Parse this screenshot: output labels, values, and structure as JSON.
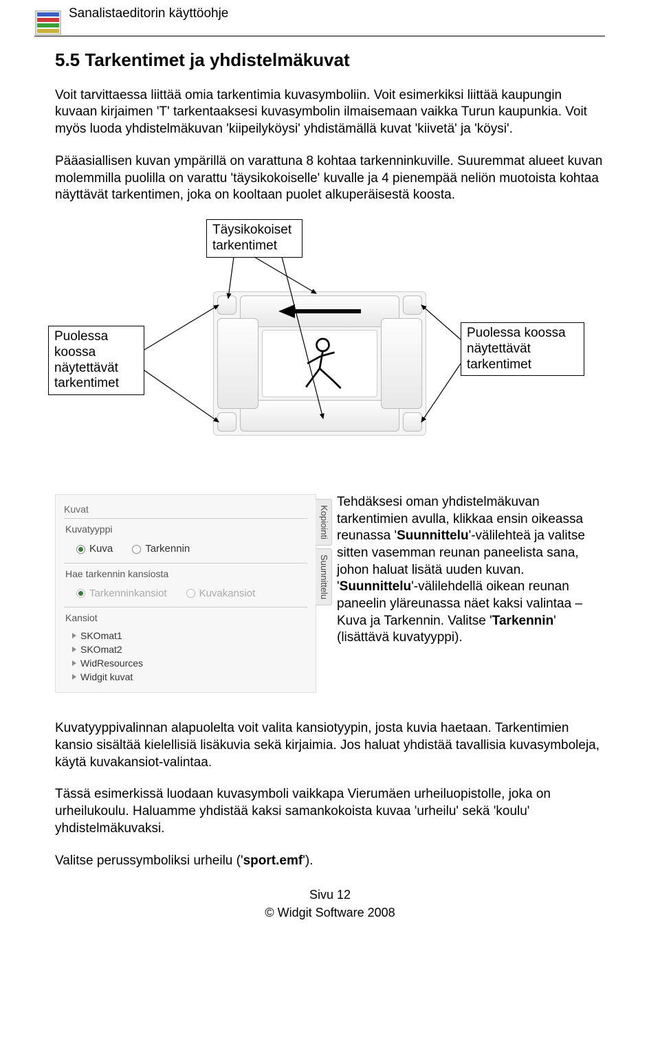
{
  "header": {
    "title": "Sanalistaeditorin käyttöohje"
  },
  "section": {
    "title": "5.5 Tarkentimet ja yhdistelmäkuvat"
  },
  "p1": "Voit tarvittaessa liittää omia tarkentimia kuvasymboliin. Voit esimerkiksi liittää kaupungin kuvaan kirjaimen 'T' tarkentaaksesi kuvasymbolin ilmaisemaan vaikka Turun kaupunkia. Voit myös luoda yhdistelmäkuvan 'kiipeilyköysi' yhdistämällä kuvat 'kiivetä' ja 'köysi'.",
  "p2": "Pääasiallisen kuvan ympärillä on varattuna 8 kohtaa tarkenninkuville. Suuremmat alueet kuvan molemmilla puolilla on varattu 'täysikokoiselle' kuvalle ja 4 pienempää neliön muotoista kohtaa näyttävät tarkentimen, joka on kooltaan puolet alkuperäisestä koosta.",
  "labels": {
    "top": "Täysikokoiset tarkentimet",
    "left": "Puolessa koossa näytettävät tarkentimet",
    "right": "Puolessa koossa näytettävät tarkentimet"
  },
  "panel": {
    "group1": "Kuvat",
    "sub1": "Kuvatyyppi",
    "radio1a": "Kuva",
    "radio1b": "Tarkennin",
    "sub2": "Hae tarkennin kansiosta",
    "radio2a": "Tarkenninkansiot",
    "radio2b": "Kuvakansiot",
    "sub3": "Kansiot",
    "folders": [
      "SKOmat1",
      "SKOmat2",
      "WidResources",
      "Widgit kuvat"
    ],
    "tab1": "Kopiointi",
    "tab2": "Suunnittelu"
  },
  "rightcol_html": "Tehdäksesi oman yhdistelmäkuvan tarkentimien avulla, klikkaa ensin oikeassa reunassa '<b>Suunnittelu</b>'-välilehteä ja valitse sitten vasemman reunan paneelista sana, johon haluat lisätä uuden kuvan. '<b>Suunnittelu</b>'-välilehdellä oikean reunan paneelin yläreunassa näet kaksi valintaa – Kuva ja Tarkennin. Valitse '<b>Tarkennin</b>' (lisättävä kuvatyyppi).",
  "p3": "Kuvatyyppivalinnan alapuolelta voit valita kansiotyypin, josta kuvia haetaan. Tarkentimien kansio sisältää kielellisiä lisäkuvia sekä kirjaimia. Jos haluat yhdistää tavallisia kuvasymboleja, käytä kuvakansiot-valintaa.",
  "p4": "Tässä esimerkissä luodaan kuvasymboli vaikkapa Vierumäen urheiluopistolle, joka on urheilukoulu. Haluamme yhdistää kaksi samankokoista kuvaa 'urheilu' sekä 'koulu' yhdistelmäkuvaksi.",
  "p5_pre": "Valitse perussymboliksi urheilu ('",
  "p5_bold": "sport.emf",
  "p5_post": "').",
  "footer": {
    "page": "Sivu 12",
    "copyright": "© Widgit Software 2008"
  }
}
